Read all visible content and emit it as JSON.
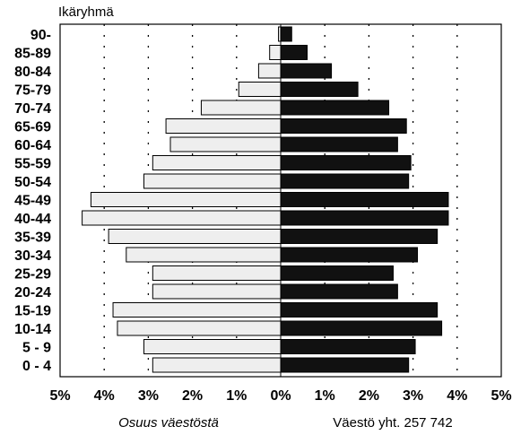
{
  "chart_data": {
    "type": "bar",
    "orientation": "horizontal",
    "subtype": "population-pyramid",
    "title": "Ikäryhmä",
    "categories": [
      "0 - 4",
      "5 - 9",
      "10-14",
      "15-19",
      "20-24",
      "25-29",
      "30-34",
      "35-39",
      "40-44",
      "45-49",
      "50-54",
      "55-59",
      "60-64",
      "65-69",
      "70-74",
      "75-79",
      "80-84",
      "85-89",
      "90-"
    ],
    "series": [
      {
        "side": "left",
        "color": "#eeeeee",
        "values": [
          2.9,
          3.1,
          3.7,
          3.8,
          2.9,
          2.9,
          3.5,
          3.9,
          4.5,
          4.3,
          3.1,
          2.9,
          2.5,
          2.6,
          1.8,
          0.95,
          0.5,
          0.25,
          0.05
        ]
      },
      {
        "side": "right",
        "color": "#111111",
        "values": [
          2.9,
          3.05,
          3.65,
          3.55,
          2.65,
          2.55,
          3.1,
          3.55,
          3.8,
          3.8,
          2.9,
          2.95,
          2.65,
          2.85,
          2.45,
          1.75,
          1.15,
          0.6,
          0.25
        ]
      }
    ],
    "xticks": [
      "5%",
      "4%",
      "3%",
      "2%",
      "1%",
      "0%",
      "1%",
      "2%",
      "3%",
      "4%",
      "5%"
    ],
    "xlim": [
      -5,
      5
    ],
    "grid": "vertical-dotted",
    "xlabel_left": "Osuus väestöstä",
    "xlabel_right": "Väestö yht. 257 742"
  }
}
